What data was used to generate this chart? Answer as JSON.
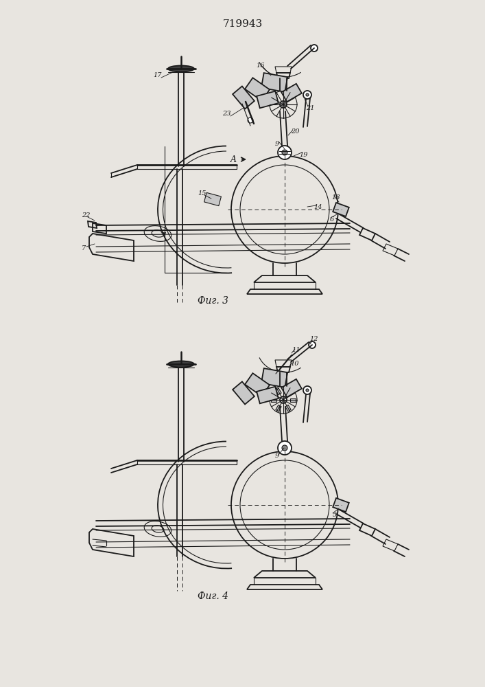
{
  "title": "719943",
  "fig3_label": "Фиг. 3",
  "fig4_label": "Фиг. 4",
  "bg_color": "#e8e5e0",
  "line_color": "#1a1a1a"
}
